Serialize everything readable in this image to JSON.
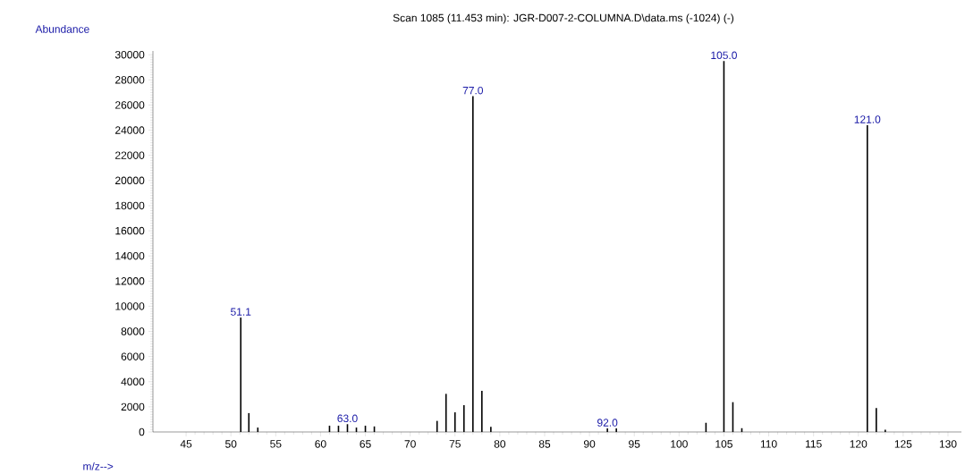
{
  "chart_data": {
    "type": "bar",
    "title": "Scan 1085 (11.453 min): JGR-D007-2-COLUMNA.D\\data.ms (-1024) (-)",
    "xlabel": "m/z-->",
    "ylabel": "Abundance",
    "orientation": "vertical",
    "x": [
      51.1,
      52,
      53,
      61,
      62,
      63,
      64,
      65,
      66,
      73,
      74,
      75,
      76,
      77,
      78,
      79,
      92,
      93,
      103,
      105,
      106,
      107,
      121,
      122,
      123
    ],
    "values": [
      9100,
      1500,
      350,
      500,
      500,
      620,
      350,
      500,
      440,
      880,
      3030,
      1560,
      2130,
      26700,
      3270,
      400,
      280,
      280,
      730,
      29500,
      2370,
      300,
      24400,
      1900,
      170
    ],
    "color": "#000000",
    "xlim": [
      41.3,
      131.5
    ],
    "ylim": [
      0,
      30300
    ],
    "xticks": [
      45,
      50,
      55,
      60,
      65,
      70,
      75,
      80,
      85,
      90,
      95,
      100,
      105,
      110,
      115,
      120,
      125,
      130
    ],
    "yticks": [
      0,
      2000,
      4000,
      6000,
      8000,
      10000,
      12000,
      14000,
      16000,
      18000,
      20000,
      22000,
      24000,
      26000,
      28000,
      30000
    ],
    "annotations": [
      {
        "text": "51.1",
        "x": 51.1,
        "y": 9100
      },
      {
        "text": "63.0",
        "x": 63,
        "y": 620
      },
      {
        "text": "77.0",
        "x": 77,
        "y": 26700
      },
      {
        "text": "92.0",
        "x": 92,
        "y": 280
      },
      {
        "text": "105.0",
        "x": 105,
        "y": 29500
      },
      {
        "text": "121.0",
        "x": 121,
        "y": 24400
      }
    ],
    "data_labels": false
  }
}
